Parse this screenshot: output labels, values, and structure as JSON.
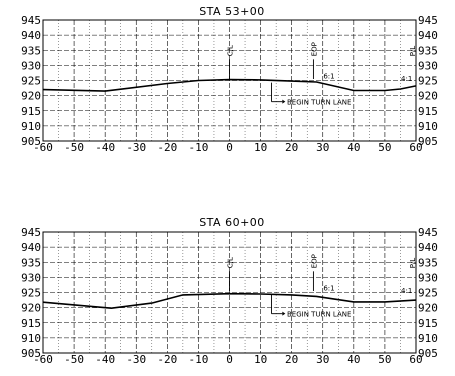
{
  "sections": [
    {
      "title": "STA 53+00",
      "centerline_label": "C/L",
      "eop_label": "EOP",
      "pl_label": "P/L",
      "note": "BEGIN TURN LANE",
      "slope_left": "6:1",
      "slope_right": "4:1",
      "eop_offset": 27,
      "profile": [
        [
          -60,
          922
        ],
        [
          -40,
          921.5
        ],
        [
          -20,
          924
        ],
        [
          -10,
          925
        ],
        [
          0,
          925.3
        ],
        [
          10,
          925.2
        ],
        [
          20,
          924.8
        ],
        [
          28,
          924.5
        ],
        [
          40,
          921.7
        ],
        [
          50,
          921.7
        ],
        [
          55,
          922.2
        ],
        [
          60,
          923.2
        ]
      ]
    },
    {
      "title": "STA 60+00",
      "centerline_label": "C/L",
      "eop_label": "EOP",
      "pl_label": "P/L",
      "note": "BEGIN TURN LANE",
      "slope_left": "6:1",
      "slope_right": "4:1",
      "eop_offset": 27,
      "profile": [
        [
          -60,
          921.8
        ],
        [
          -38,
          919.8
        ],
        [
          -25,
          921.5
        ],
        [
          -15,
          924.2
        ],
        [
          0,
          924.6
        ],
        [
          10,
          924.5
        ],
        [
          20,
          924.2
        ],
        [
          28,
          923.7
        ],
        [
          40,
          921.9
        ],
        [
          50,
          921.9
        ],
        [
          60,
          922.5
        ]
      ]
    }
  ],
  "x_ticks": [
    "-60",
    "-50",
    "-40",
    "-30",
    "-20",
    "-10",
    "0",
    "10",
    "20",
    "30",
    "40",
    "50",
    "60"
  ],
  "y_ticks": [
    "945",
    "940",
    "935",
    "930",
    "925",
    "920",
    "915",
    "910",
    "905"
  ],
  "x_range": [
    -60,
    60
  ],
  "y_range": [
    905,
    945
  ]
}
